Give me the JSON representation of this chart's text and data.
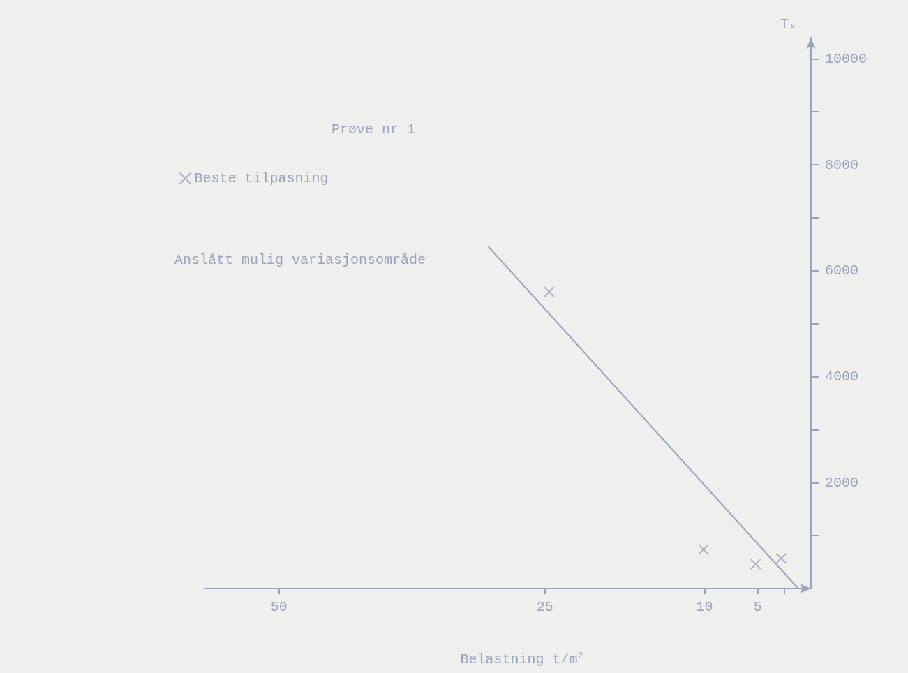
{
  "chart_data": {
    "type": "scatter",
    "title": "Prøve nr 1",
    "xlabel": "Belastning t/m$^{2}$",
    "ylabel": "Tₛ",
    "annotations": [
      "Anslått mulig variasjonsområde"
    ],
    "series": [
      {
        "name": "Beste tilpasning",
        "type": "scatter",
        "marker": "cross",
        "color": "#9aa3bd",
        "x": [
          2.8,
          5.2,
          10.1,
          24.6
        ],
        "values": [
          570,
          460,
          740,
          5600
        ]
      },
      {
        "type": "line",
        "marker": "none",
        "line_style": "solid",
        "color": "#9aa3bd",
        "x": [
          1.2,
          30.3
        ],
        "values": [
          0,
          6450
        ]
      }
    ],
    "xlim": [
      57,
      0
    ],
    "xticks": [
      {
        "value": 2.5,
        "label": null
      },
      5,
      10,
      25,
      50
    ],
    "ylim": [
      0,
      10400
    ],
    "yticks": [
      {
        "value": 1000,
        "label": null
      },
      2000,
      {
        "value": 3000,
        "label": null
      },
      4000,
      {
        "value": 5000,
        "label": null
      },
      6000,
      {
        "value": 7000,
        "label": null
      },
      8000,
      {
        "value": 9000,
        "label": null
      },
      10000
    ],
    "legend": "top left",
    "grid": false
  }
}
